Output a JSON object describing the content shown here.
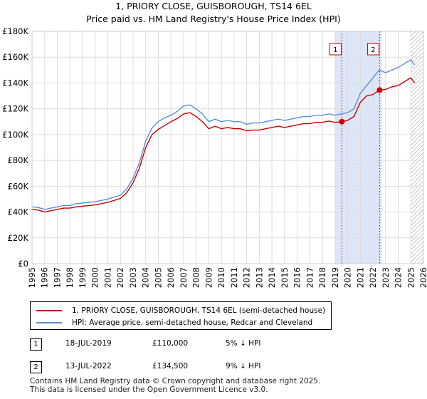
{
  "title_line1": "1, PRIORY CLOSE, GUISBOROUGH, TS14 6EL",
  "title_line2": "Price paid vs. HM Land Registry's House Price Index (HPI)",
  "colors": {
    "price": "#cc0000",
    "hpi": "#5a8ed6",
    "shade": "#dde6f7",
    "marker": "#cc0000"
  },
  "legend": {
    "price_label": "1, PRIORY CLOSE, GUISBOROUGH, TS14 6EL (semi-detached house)",
    "hpi_label": "HPI: Average price, semi-detached house, Redcar and Cleveland"
  },
  "sales": [
    {
      "num": "1",
      "date": "18-JUL-2019",
      "price": "£110,000",
      "hpi": "5% ↓ HPI"
    },
    {
      "num": "2",
      "date": "13-JUL-2022",
      "price": "£134,500",
      "hpi": "9% ↓ HPI"
    }
  ],
  "footer": {
    "line1": "Contains HM Land Registry data © Crown copyright and database right 2025.",
    "line2": "This data is licensed under the Open Government Licence v3.0."
  },
  "chart_data": {
    "type": "line",
    "title": "Price paid vs. HM Land Registry's House Price Index (HPI)",
    "xlabel": "",
    "ylabel": "",
    "xlim": [
      1995,
      2026
    ],
    "ylim": [
      0,
      180000
    ],
    "yticks": [
      0,
      20000,
      40000,
      60000,
      80000,
      100000,
      120000,
      140000,
      160000,
      180000
    ],
    "ytick_labels": [
      "£0",
      "£20K",
      "£40K",
      "£60K",
      "£80K",
      "£100K",
      "£120K",
      "£140K",
      "£160K",
      "£180K"
    ],
    "xticks": [
      1995,
      1996,
      1997,
      1998,
      1999,
      2000,
      2001,
      2002,
      2003,
      2004,
      2005,
      2006,
      2007,
      2008,
      2009,
      2010,
      2011,
      2012,
      2013,
      2014,
      2015,
      2016,
      2017,
      2018,
      2019,
      2020,
      2021,
      2022,
      2023,
      2024,
      2025,
      2026
    ],
    "xtick_labels": [
      "1995",
      "1996",
      "1997",
      "1998",
      "1999",
      "2000",
      "2001",
      "2002",
      "2003",
      "2004",
      "2005",
      "2006",
      "2007",
      "2008",
      "2009",
      "2010",
      "2011",
      "2012",
      "2013",
      "2014",
      "2015",
      "2016",
      "2017",
      "2018",
      "2019",
      "2020",
      "2021",
      "2022",
      "2023",
      "2024",
      "2025",
      "2026"
    ],
    "grid": true,
    "shaded_span": [
      2019.0,
      2022.7
    ],
    "hatched_from": 2025.0,
    "sale_markers": [
      {
        "label": "1",
        "x": 2019.54,
        "y": 110000
      },
      {
        "label": "2",
        "x": 2022.53,
        "y": 134500
      }
    ],
    "series": [
      {
        "name": "HPI: Average price, semi-detached house, Redcar and Cleveland",
        "color": "#5a8ed6",
        "x": [
          1995,
          1995.5,
          1996,
          1996.5,
          1997,
          1997.5,
          1998,
          1998.5,
          1999,
          1999.5,
          2000,
          2000.5,
          2001,
          2001.5,
          2002,
          2002.5,
          2003,
          2003.5,
          2004,
          2004.5,
          2005,
          2005.5,
          2006,
          2006.5,
          2007,
          2007.5,
          2008,
          2008.5,
          2009,
          2009.5,
          2010,
          2010.5,
          2011,
          2011.5,
          2012,
          2012.5,
          2013,
          2013.5,
          2014,
          2014.5,
          2015,
          2015.5,
          2016,
          2016.5,
          2017,
          2017.5,
          2018,
          2018.5,
          2019,
          2019.5,
          2020,
          2020.5,
          2021,
          2021.5,
          2022,
          2022.5,
          2023,
          2023.5,
          2024,
          2024.5,
          2025,
          2025.3
        ],
        "y": [
          44000,
          43500,
          42000,
          43000,
          44000,
          45000,
          45000,
          46500,
          47000,
          47500,
          48000,
          49000,
          50000,
          51500,
          53000,
          58000,
          66000,
          78000,
          95000,
          105000,
          110000,
          113000,
          115000,
          118000,
          122000,
          123000,
          120000,
          116000,
          110000,
          112000,
          110000,
          111000,
          110000,
          110000,
          108000,
          109000,
          109000,
          110000,
          111000,
          112000,
          111000,
          112000,
          113000,
          114000,
          114000,
          115000,
          115000,
          116000,
          115000,
          116000,
          117000,
          120000,
          132000,
          138000,
          144000,
          150000,
          148000,
          150000,
          152000,
          155000,
          158000,
          154000
        ]
      },
      {
        "name": "1, PRIORY CLOSE, GUISBOROUGH, TS14 6EL (semi-detached house)",
        "color": "#cc0000",
        "x": [
          1995,
          1995.5,
          1996,
          1996.5,
          1997,
          1997.5,
          1998,
          1998.5,
          1999,
          1999.5,
          2000,
          2000.5,
          2001,
          2001.5,
          2002,
          2002.5,
          2003,
          2003.5,
          2004,
          2004.5,
          2005,
          2005.5,
          2006,
          2006.5,
          2007,
          2007.5,
          2008,
          2008.5,
          2009,
          2009.5,
          2010,
          2010.5,
          2011,
          2011.5,
          2012,
          2012.5,
          2013,
          2013.5,
          2014,
          2014.5,
          2015,
          2015.5,
          2016,
          2016.5,
          2017,
          2017.5,
          2018,
          2018.5,
          2019,
          2019.54,
          2020,
          2020.5,
          2021,
          2021.5,
          2022,
          2022.53,
          2023,
          2023.5,
          2024,
          2024.5,
          2025,
          2025.3
        ],
        "y": [
          42000,
          41500,
          40000,
          41000,
          42000,
          43000,
          43000,
          44000,
          44500,
          45000,
          45500,
          46500,
          47500,
          49000,
          50500,
          55000,
          62500,
          74000,
          90000,
          100000,
          104000,
          107000,
          110000,
          112500,
          116000,
          117000,
          114000,
          110000,
          104500,
          106500,
          104500,
          105500,
          104500,
          104500,
          103000,
          103500,
          103500,
          104500,
          105500,
          106500,
          105500,
          106500,
          107500,
          108500,
          108500,
          109500,
          109500,
          110500,
          109500,
          110000,
          111000,
          114000,
          125000,
          130000,
          131000,
          134500,
          135000,
          137000,
          138000,
          141000,
          144000,
          140000
        ]
      }
    ]
  }
}
